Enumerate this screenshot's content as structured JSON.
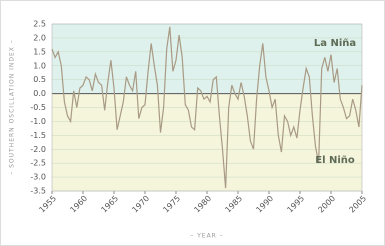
{
  "chart_data": {
    "type": "line",
    "xlabel": "– YEAR –",
    "ylabel": "– SOUTHERN OSCILLATION INDEX –",
    "annotations": [
      "La Niña",
      "El Niño"
    ],
    "x": [
      1955,
      1955.5,
      1956,
      1956.5,
      1957,
      1957.5,
      1958,
      1958.5,
      1959,
      1959.5,
      1960,
      1960.5,
      1961,
      1961.5,
      1962,
      1962.5,
      1963,
      1963.5,
      1964,
      1964.5,
      1965,
      1965.5,
      1966,
      1966.5,
      1967,
      1967.5,
      1968,
      1968.5,
      1969,
      1969.5,
      1970,
      1970.5,
      1971,
      1971.5,
      1972,
      1972.5,
      1973,
      1973.5,
      1974,
      1974.5,
      1975,
      1975.5,
      1976,
      1976.5,
      1977,
      1977.5,
      1978,
      1978.5,
      1979,
      1979.5,
      1980,
      1980.5,
      1981,
      1981.5,
      1982,
      1982.5,
      1983,
      1983.5,
      1984,
      1984.5,
      1985,
      1985.5,
      1986,
      1986.5,
      1987,
      1987.5,
      1988,
      1988.5,
      1989,
      1989.5,
      1990,
      1990.5,
      1991,
      1991.5,
      1992,
      1992.5,
      1993,
      1993.5,
      1994,
      1994.5,
      1995,
      1995.5,
      1996,
      1996.5,
      1997,
      1997.5,
      1998,
      1998.5,
      1999,
      1999.5,
      2000,
      2000.5,
      2001,
      2001.5,
      2002,
      2002.5,
      2003,
      2003.5,
      2004,
      2004.5,
      2005
    ],
    "series": [
      {
        "color": "#a89a84",
        "values": [
          1.6,
          1.3,
          1.5,
          1.0,
          -0.3,
          -0.8,
          -1.0,
          0.1,
          -0.5,
          0.2,
          0.3,
          0.6,
          0.5,
          0.1,
          0.7,
          0.4,
          0.3,
          -0.6,
          0.4,
          1.2,
          0.2,
          -1.3,
          -0.8,
          -0.3,
          0.6,
          0.3,
          0.1,
          0.8,
          -0.9,
          -0.5,
          -0.4,
          0.8,
          1.8,
          1.0,
          0.3,
          -1.4,
          -0.5,
          1.6,
          2.4,
          0.8,
          1.2,
          2.1,
          1.3,
          -0.4,
          -0.6,
          -1.2,
          -1.3,
          0.2,
          0.1,
          -0.2,
          -0.1,
          -0.3,
          0.5,
          0.6,
          -0.8,
          -2.0,
          -3.4,
          -0.5,
          0.3,
          0.0,
          -0.2,
          0.4,
          -0.1,
          -0.8,
          -1.7,
          -2.0,
          -0.2,
          1.0,
          1.8,
          0.6,
          0.1,
          -0.5,
          -0.2,
          -1.5,
          -2.1,
          -0.8,
          -1.0,
          -1.5,
          -1.2,
          -1.6,
          -0.6,
          0.2,
          0.9,
          0.6,
          -0.8,
          -1.9,
          -2.5,
          0.9,
          1.3,
          0.8,
          1.4,
          0.4,
          0.9,
          -0.2,
          -0.5,
          -0.9,
          -0.8,
          -0.2,
          -0.6,
          -1.2,
          0.3
        ]
      }
    ],
    "xlim": [
      1955,
      2005
    ],
    "xticks": [
      1955,
      1960,
      1965,
      1970,
      1975,
      1980,
      1985,
      1990,
      1995,
      2000,
      2005
    ],
    "ylim": [
      -3.5,
      2.5
    ],
    "yticks": [
      2.5,
      {
        "value": 2,
        "label": "2.0"
      },
      1.5,
      {
        "value": 1,
        "label": "1.0"
      },
      0.5,
      {
        "value": 0,
        "label": "0.0"
      },
      -0.5,
      {
        "value": -1,
        "label": "-1.0"
      },
      -1.5,
      {
        "value": -2,
        "label": "-2.0"
      },
      -2.5,
      {
        "value": -3,
        "label": "-3.0"
      },
      -3.5
    ],
    "grid": true,
    "upper_color": "#dff1ec",
    "lower_color": "#f5f5dc"
  }
}
